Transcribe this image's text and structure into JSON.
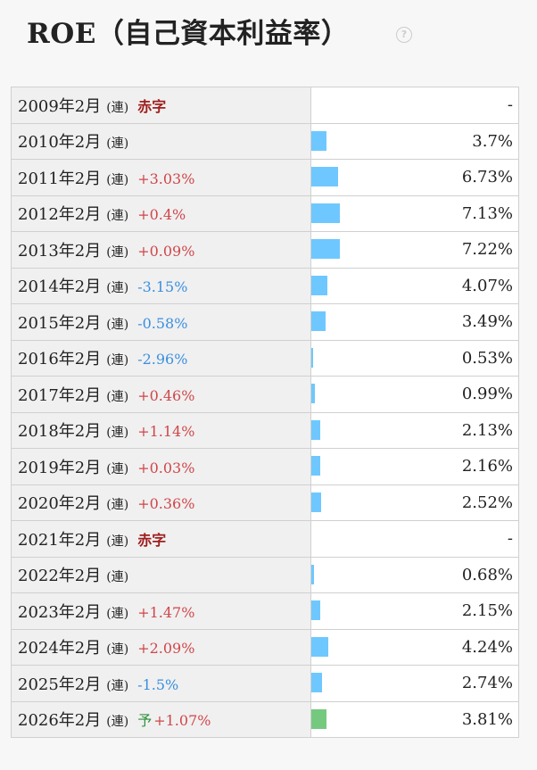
{
  "header": {
    "title": "ROE（自己資本利益率）",
    "help_icon": "question-circle-icon"
  },
  "colors": {
    "bar": "#6ec8ff",
    "bar_forecast": "#74c97f",
    "increase": "#d0464a",
    "decrease": "#3a8fe0",
    "deficit": "#a01e1e"
  },
  "rows": [
    {
      "period": "2009年2月",
      "type": "(連)",
      "note": "赤字",
      "note_kind": "red",
      "value": "-",
      "ratio": 0
    },
    {
      "period": "2010年2月",
      "type": "(連)",
      "note": "",
      "note_kind": "",
      "value": "3.7%",
      "ratio": 3.7
    },
    {
      "period": "2011年2月",
      "type": "(連)",
      "note": "+3.03%",
      "note_kind": "pos",
      "value": "6.73%",
      "ratio": 6.73
    },
    {
      "period": "2012年2月",
      "type": "(連)",
      "note": "+0.4%",
      "note_kind": "pos",
      "value": "7.13%",
      "ratio": 7.13
    },
    {
      "period": "2013年2月",
      "type": "(連)",
      "note": "+0.09%",
      "note_kind": "pos",
      "value": "7.22%",
      "ratio": 7.22
    },
    {
      "period": "2014年2月",
      "type": "(連)",
      "note": "-3.15%",
      "note_kind": "neg",
      "value": "4.07%",
      "ratio": 4.07
    },
    {
      "period": "2015年2月",
      "type": "(連)",
      "note": "-0.58%",
      "note_kind": "neg",
      "value": "3.49%",
      "ratio": 3.49
    },
    {
      "period": "2016年2月",
      "type": "(連)",
      "note": "-2.96%",
      "note_kind": "neg",
      "value": "0.53%",
      "ratio": 0.53
    },
    {
      "period": "2017年2月",
      "type": "(連)",
      "note": "+0.46%",
      "note_kind": "pos",
      "value": "0.99%",
      "ratio": 0.99
    },
    {
      "period": "2018年2月",
      "type": "(連)",
      "note": "+1.14%",
      "note_kind": "pos",
      "value": "2.13%",
      "ratio": 2.13
    },
    {
      "period": "2019年2月",
      "type": "(連)",
      "note": "+0.03%",
      "note_kind": "pos",
      "value": "2.16%",
      "ratio": 2.16
    },
    {
      "period": "2020年2月",
      "type": "(連)",
      "note": "+0.36%",
      "note_kind": "pos",
      "value": "2.52%",
      "ratio": 2.52
    },
    {
      "period": "2021年2月",
      "type": "(連)",
      "note": "赤字",
      "note_kind": "red",
      "value": "-",
      "ratio": 0
    },
    {
      "period": "2022年2月",
      "type": "(連)",
      "note": "",
      "note_kind": "",
      "value": "0.68%",
      "ratio": 0.68
    },
    {
      "period": "2023年2月",
      "type": "(連)",
      "note": "+1.47%",
      "note_kind": "pos",
      "value": "2.15%",
      "ratio": 2.15
    },
    {
      "period": "2024年2月",
      "type": "(連)",
      "note": "+2.09%",
      "note_kind": "pos",
      "value": "4.24%",
      "ratio": 4.24
    },
    {
      "period": "2025年2月",
      "type": "(連)",
      "note": "-1.5%",
      "note_kind": "neg",
      "value": "2.74%",
      "ratio": 2.74
    },
    {
      "period": "2026年2月",
      "type": "(連)",
      "forecast": "予",
      "note": "+1.07%",
      "note_kind": "pos",
      "value": "3.81%",
      "ratio": 3.81
    }
  ]
}
